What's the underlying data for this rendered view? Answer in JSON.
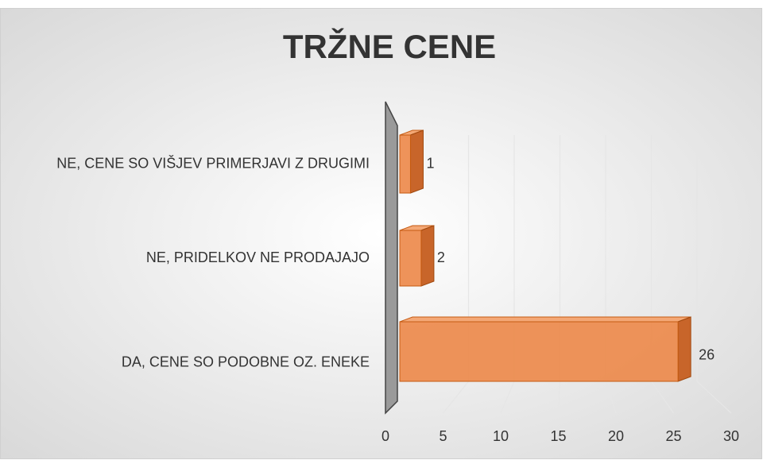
{
  "chart_data": {
    "type": "bar",
    "orientation": "horizontal",
    "title": "TRŽNE CENE",
    "categories": [
      "NE, CENE SO VIŠJEV PRIMERJAVI Z DRUGIMI",
      "NE, PRIDELKOV NE PRODAJAJO",
      "DA, CENE SO PODOBNE OZ. ENEKE"
    ],
    "values": [
      1,
      2,
      26
    ],
    "color": "#ed8a4c",
    "xlim": [
      0,
      30
    ],
    "xticks": [
      0,
      5,
      10,
      15,
      20,
      25,
      30
    ],
    "grid": true
  }
}
